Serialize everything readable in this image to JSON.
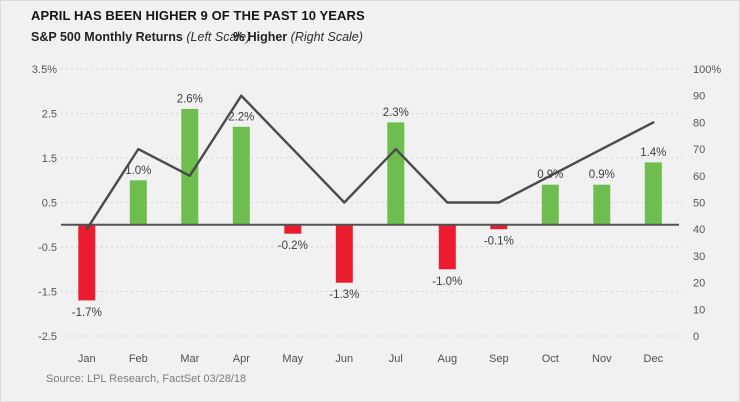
{
  "header": {
    "title": "APRIL HAS BEEN HIGHER 9 OF THE PAST 10 YEARS",
    "legend": [
      {
        "label": "S&P 500 Monthly Returns",
        "scale_note": "(Left Scale)"
      },
      {
        "label": "% Higher",
        "scale_note": "(Right Scale)"
      }
    ]
  },
  "footer": {
    "source": "Source: LPL Research, FactSet 03/28/18"
  },
  "chart_data": {
    "type": "bar",
    "subtype": "bar-and-line-dual-axis",
    "categories": [
      "Jan",
      "Feb",
      "Mar",
      "Apr",
      "May",
      "Jun",
      "Jul",
      "Aug",
      "Sep",
      "Oct",
      "Nov",
      "Dec"
    ],
    "series": [
      {
        "name": "S&P 500 Monthly Returns",
        "type": "bar",
        "axis": "left",
        "values": [
          -1.7,
          1.0,
          2.6,
          2.2,
          -0.2,
          -1.3,
          2.3,
          -1.0,
          -0.1,
          0.9,
          0.9,
          1.4
        ],
        "labels": [
          "-1.7%",
          "1.0%",
          "2.6%",
          "2.2%",
          "-0.2%",
          "-1.3%",
          "2.3%",
          "-1.0%",
          "-0.1%",
          "0.9%",
          "0.9%",
          "1.4%"
        ],
        "positive_color": "#6dbe4e",
        "negative_color": "#eb1c2d"
      },
      {
        "name": "% Higher",
        "type": "line",
        "axis": "right",
        "values": [
          40,
          70,
          60,
          90,
          70,
          50,
          70,
          50,
          50,
          60,
          70,
          80
        ],
        "color": "#4a4b4f"
      }
    ],
    "left_axis": {
      "min": -2.5,
      "max": 3.5,
      "tick_values": [
        3.5,
        2.5,
        1.5,
        0.5,
        -0.5,
        -1.5,
        -2.5
      ],
      "ticks": [
        "3.5%",
        "2.5",
        "1.5",
        "0.5",
        "-0.5",
        "-1.5",
        "-2.5"
      ]
    },
    "right_axis": {
      "min": 0,
      "max": 100,
      "tick_values": [
        100,
        90,
        80,
        70,
        60,
        50,
        40,
        30,
        20,
        10,
        0
      ],
      "ticks": [
        "100%",
        "90",
        "80",
        "70",
        "60",
        "50",
        "40",
        "30",
        "20",
        "10",
        "0"
      ]
    },
    "grid": "dashed-horizontal",
    "legend_position": "top-left",
    "style": {
      "grid_color": "#d4d4d8",
      "zero_line_color": "#515256",
      "background": "#f1f1f2"
    }
  }
}
